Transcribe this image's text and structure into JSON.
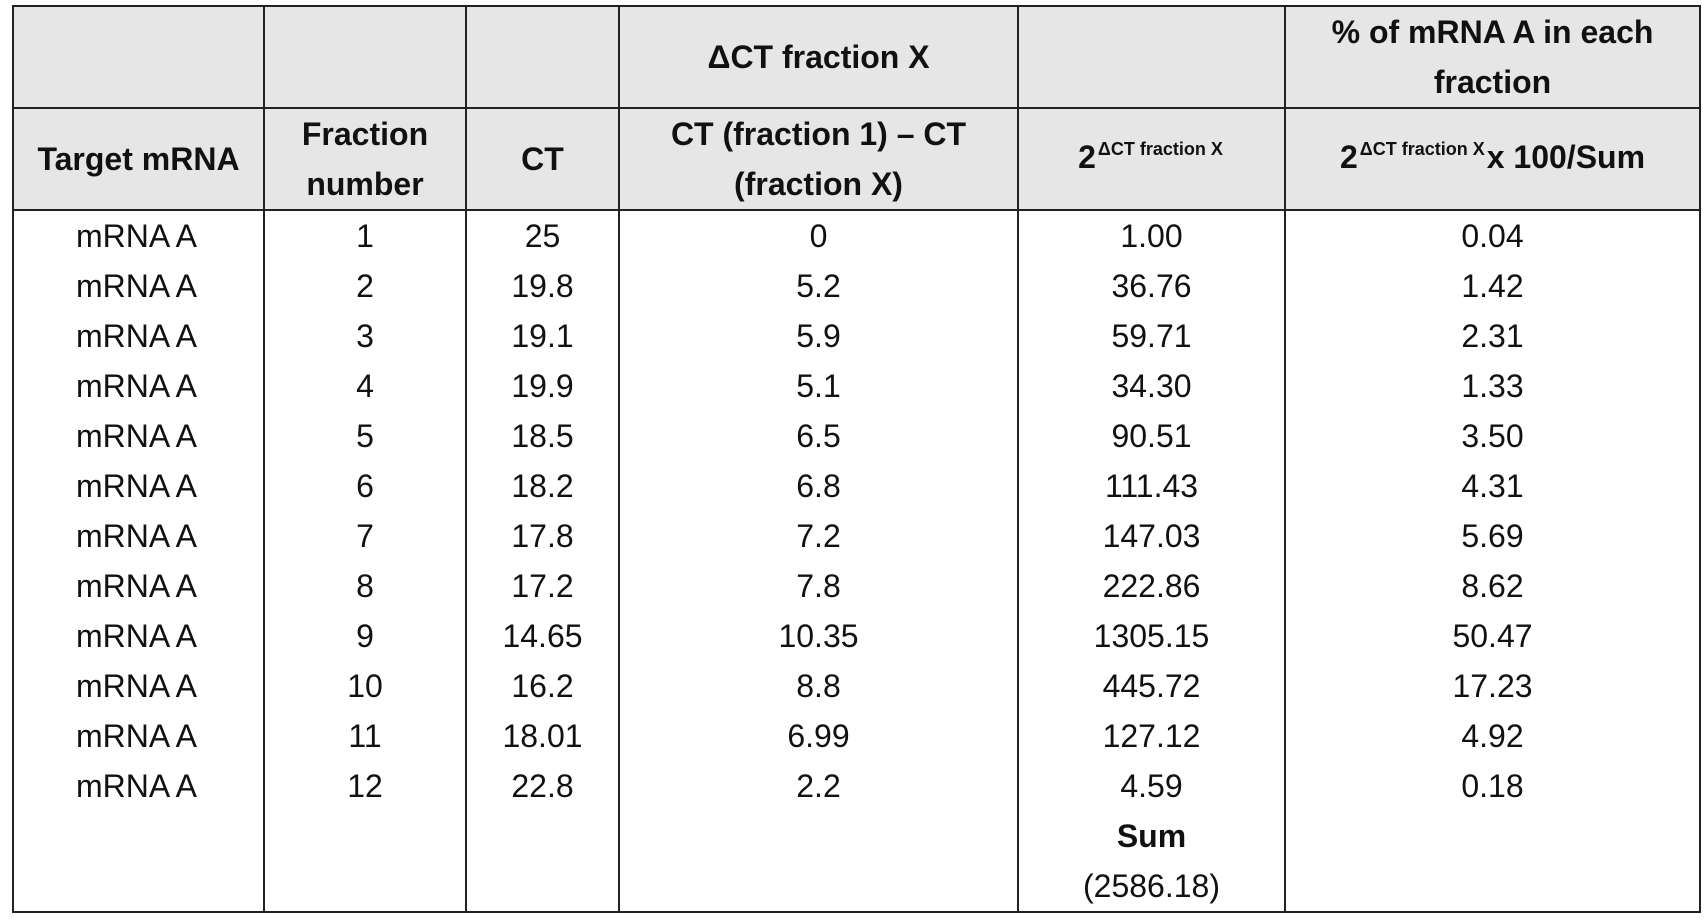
{
  "header_row1": {
    "col4": "ΔCT fraction X",
    "col6": "% of mRNA A in each fraction"
  },
  "header_row2": {
    "col1": "Target mRNA",
    "col2": "Fraction number",
    "col3": "CT",
    "col4": "CT (fraction 1) – CT (fraction X)",
    "col5_base": "2",
    "col5_sup": "ΔCT fraction X",
    "col6_base": "2",
    "col6_sup": "ΔCT fraction X",
    "col6_suffix": "x 100/Sum"
  },
  "rows": [
    {
      "target": "mRNA A",
      "fraction": "1",
      "ct": "25",
      "delta_ct": "0",
      "power": "1.00",
      "percent": "0.04"
    },
    {
      "target": "mRNA A",
      "fraction": "2",
      "ct": "19.8",
      "delta_ct": "5.2",
      "power": "36.76",
      "percent": "1.42"
    },
    {
      "target": "mRNA A",
      "fraction": "3",
      "ct": "19.1",
      "delta_ct": "5.9",
      "power": "59.71",
      "percent": "2.31"
    },
    {
      "target": "mRNA A",
      "fraction": "4",
      "ct": "19.9",
      "delta_ct": "5.1",
      "power": "34.30",
      "percent": "1.33"
    },
    {
      "target": "mRNA A",
      "fraction": "5",
      "ct": "18.5",
      "delta_ct": "6.5",
      "power": "90.51",
      "percent": "3.50"
    },
    {
      "target": "mRNA A",
      "fraction": "6",
      "ct": "18.2",
      "delta_ct": "6.8",
      "power": "111.43",
      "percent": "4.31"
    },
    {
      "target": "mRNA A",
      "fraction": "7",
      "ct": "17.8",
      "delta_ct": "7.2",
      "power": "147.03",
      "percent": "5.69"
    },
    {
      "target": "mRNA A",
      "fraction": "8",
      "ct": "17.2",
      "delta_ct": "7.8",
      "power": "222.86",
      "percent": "8.62"
    },
    {
      "target": "mRNA A",
      "fraction": "9",
      "ct": "14.65",
      "delta_ct": "10.35",
      "power": "1305.15",
      "percent": "50.47"
    },
    {
      "target": "mRNA A",
      "fraction": "10",
      "ct": "16.2",
      "delta_ct": "8.8",
      "power": "445.72",
      "percent": "17.23"
    },
    {
      "target": "mRNA A",
      "fraction": "11",
      "ct": "18.01",
      "delta_ct": "6.99",
      "power": "127.12",
      "percent": "4.92"
    },
    {
      "target": "mRNA A",
      "fraction": "12",
      "ct": "22.8",
      "delta_ct": "2.2",
      "power": "4.59",
      "percent": "0.18"
    }
  ],
  "sum": {
    "label": "Sum",
    "value": "(2586.18)"
  }
}
